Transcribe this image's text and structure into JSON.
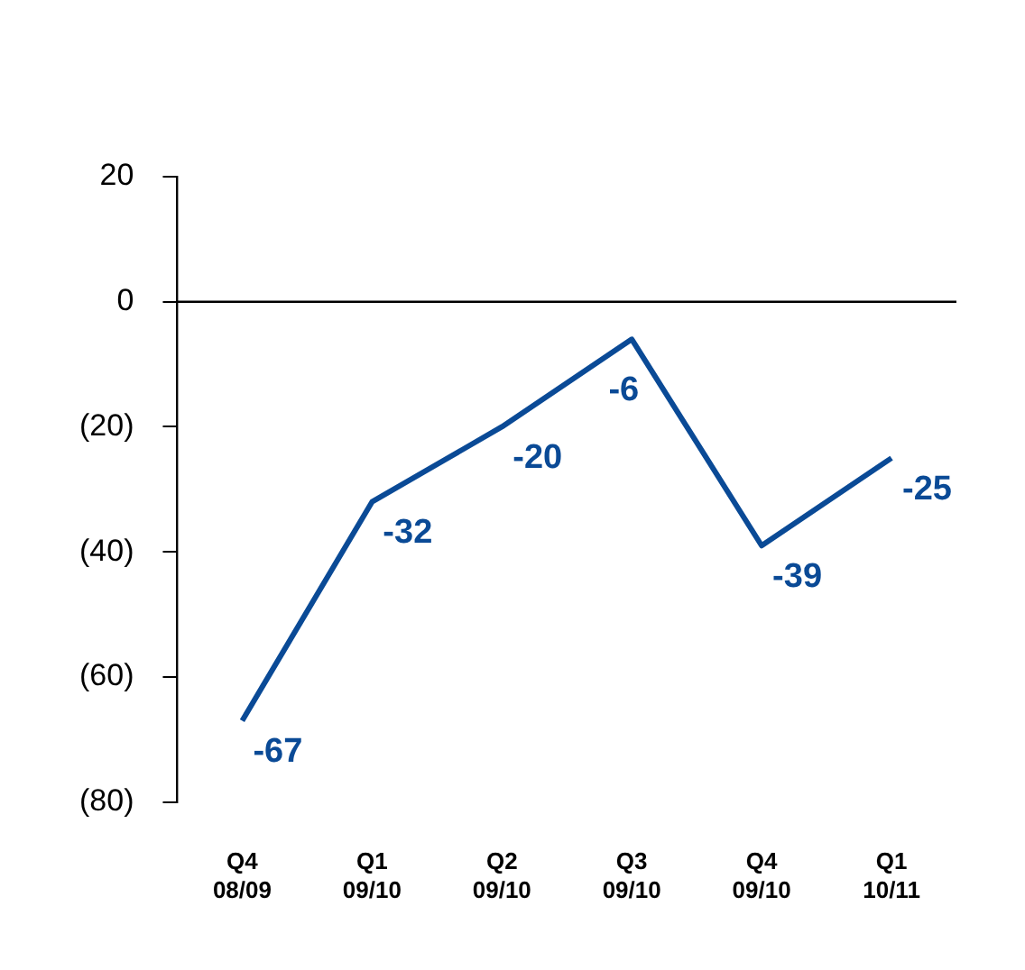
{
  "chart_data": {
    "type": "line",
    "categories": [
      "Q4 08/09",
      "Q1 09/10",
      "Q2 09/10",
      "Q3 09/10",
      "Q4 09/10",
      "Q1 10/11"
    ],
    "series": [
      {
        "color": "#0a4a96",
        "values": [
          -67,
          -32,
          -20,
          -6,
          -39,
          -25
        ]
      }
    ],
    "ylim": [
      -80,
      20
    ],
    "yticks": [
      20,
      0,
      {
        "value": -20,
        "label": "(20)"
      },
      {
        "value": -40,
        "label": "(40)"
      },
      {
        "value": -60,
        "label": "(60)"
      },
      {
        "value": -80,
        "label": "(80)"
      }
    ],
    "ref_lines": [
      {
        "axis": "y",
        "value": 0,
        "color": "#000000"
      }
    ],
    "data_labels": true,
    "grid": false,
    "legend": false,
    "marker": "none",
    "line_style": "solid"
  }
}
